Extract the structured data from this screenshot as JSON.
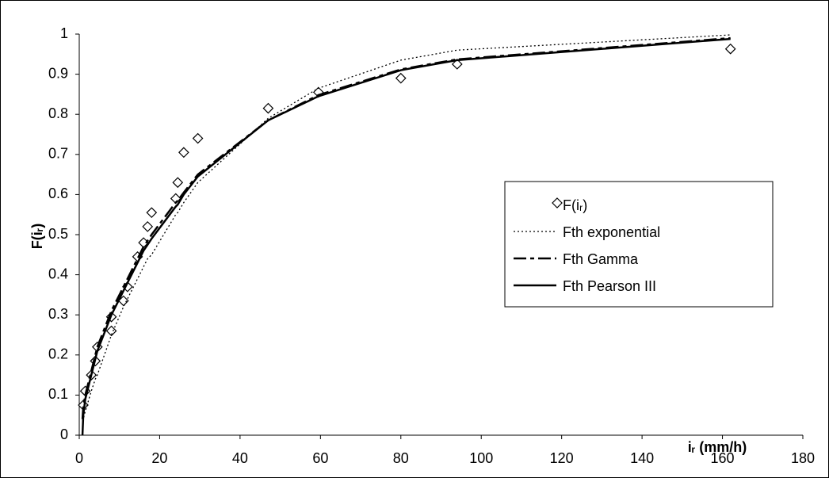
{
  "chart_data": {
    "type": "scatter-line",
    "x_label": "iᵣ (mm/h)",
    "y_label": "F(iᵣ)",
    "xlim": [
      0,
      180
    ],
    "xticks": [
      0,
      20,
      40,
      60,
      80,
      100,
      120,
      140,
      160,
      180
    ],
    "ylim": [
      0,
      1
    ],
    "yticks": [
      0,
      0.1,
      0.2,
      0.3,
      0.4,
      0.5,
      0.6,
      0.7,
      0.8,
      0.9,
      1
    ],
    "grid": false,
    "legend": "right",
    "series": [
      {
        "name": "F(iᵣ)",
        "kind": "markers",
        "color": "#000000",
        "x": [
          1,
          1.5,
          3,
          4,
          4.5,
          8,
          8,
          11,
          12,
          14.5,
          16,
          17,
          18,
          24,
          24.5,
          26,
          29.5,
          47,
          59.5,
          80,
          94,
          162
        ],
        "values": [
          0.075,
          0.11,
          0.15,
          0.185,
          0.22,
          0.26,
          0.295,
          0.335,
          0.37,
          0.445,
          0.48,
          0.52,
          0.555,
          0.59,
          0.63,
          0.705,
          0.74,
          0.815,
          0.855,
          0.89,
          0.925,
          0.963
        ]
      },
      {
        "name": "Fth exponential",
        "kind": "dotted",
        "color": "#000000",
        "x": [
          0.8,
          1,
          1.5,
          3,
          4,
          4.5,
          8,
          11,
          12,
          14.5,
          16,
          17,
          18,
          24,
          24.5,
          26,
          29.5,
          47,
          59.5,
          80,
          94,
          162
        ],
        "values": [
          0.035,
          0.04,
          0.06,
          0.11,
          0.14,
          0.15,
          0.25,
          0.32,
          0.34,
          0.39,
          0.42,
          0.44,
          0.45,
          0.55,
          0.555,
          0.58,
          0.63,
          0.79,
          0.865,
          0.935,
          0.96,
          0.998
        ]
      },
      {
        "name": "Fth Gamma",
        "kind": "dashdot",
        "color": "#000000",
        "x": [
          0.8,
          1,
          1.5,
          3,
          4,
          4.5,
          8,
          11,
          12,
          14.5,
          16,
          17,
          18,
          24,
          24.5,
          26,
          29.5,
          47,
          59.5,
          80,
          94,
          162
        ],
        "values": [
          0.04,
          0.07,
          0.1,
          0.16,
          0.2,
          0.22,
          0.31,
          0.37,
          0.39,
          0.44,
          0.47,
          0.485,
          0.5,
          0.58,
          0.585,
          0.605,
          0.65,
          0.785,
          0.848,
          0.912,
          0.937,
          0.99
        ]
      },
      {
        "name": "Fth Pearson III",
        "kind": "solid",
        "color": "#000000",
        "x": [
          0.8,
          1,
          1.5,
          3,
          4,
          4.5,
          8,
          11,
          12,
          14.5,
          16,
          17,
          18,
          24,
          24.5,
          26,
          29.5,
          47,
          59.5,
          80,
          94,
          162
        ],
        "values": [
          0,
          0.05,
          0.09,
          0.15,
          0.19,
          0.21,
          0.3,
          0.36,
          0.38,
          0.43,
          0.46,
          0.475,
          0.49,
          0.57,
          0.575,
          0.6,
          0.645,
          0.785,
          0.845,
          0.91,
          0.935,
          0.988
        ]
      }
    ]
  }
}
